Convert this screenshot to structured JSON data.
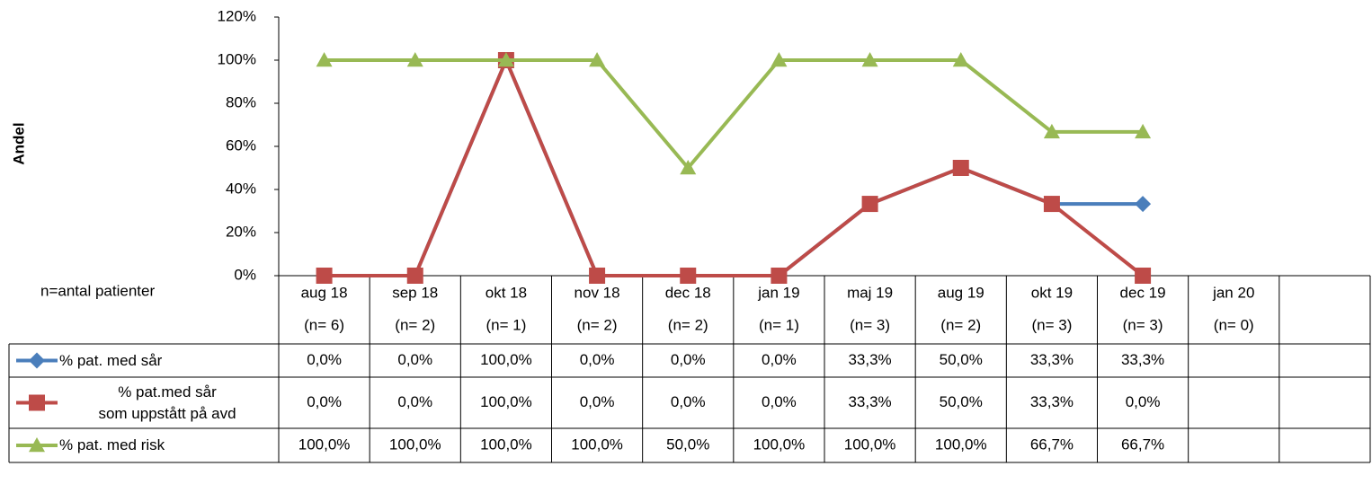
{
  "chart_data": {
    "type": "line",
    "y_axis_label": "Andel",
    "n_note": "n=antal patienter",
    "categories": [
      "aug 18",
      "sep 18",
      "okt 18",
      "nov 18",
      "dec 18",
      "jan 19",
      "maj 19",
      "aug 19",
      "okt 19",
      "dec 19",
      "jan 20",
      null
    ],
    "n_labels": [
      "(n= 6)",
      "(n= 2)",
      "(n= 1)",
      "(n= 2)",
      "(n= 2)",
      "(n= 1)",
      "(n= 3)",
      "(n= 2)",
      "(n= 3)",
      "(n= 3)",
      "(n= 0)",
      null
    ],
    "ylim": [
      0,
      120
    ],
    "yticks": [
      {
        "value": 0,
        "label": "0%"
      },
      {
        "value": 20,
        "label": "20%"
      },
      {
        "value": 40,
        "label": "40%"
      },
      {
        "value": 60,
        "label": "60%"
      },
      {
        "value": 80,
        "label": "80%"
      },
      {
        "value": 100,
        "label": "100%"
      },
      {
        "value": 120,
        "label": "120%"
      }
    ],
    "grid": false,
    "series": [
      {
        "name": "% pat. med sår",
        "color": "#4a7ebb",
        "marker": "diamond",
        "values": [
          0,
          0,
          100,
          0,
          0,
          0,
          33.3,
          50,
          33.3,
          33.3,
          null,
          null
        ],
        "value_labels": [
          "0,0%",
          "0,0%",
          "100,0%",
          "0,0%",
          "0,0%",
          "0,0%",
          "33,3%",
          "50,0%",
          "33,3%",
          "33,3%",
          null,
          null
        ]
      },
      {
        "name": "% pat.med sår\nsom uppstått på avd",
        "color": "#be4b48",
        "marker": "square",
        "values": [
          0,
          0,
          100,
          0,
          0,
          0,
          33.3,
          50,
          33.3,
          0,
          null,
          null
        ],
        "value_labels": [
          "0,0%",
          "0,0%",
          "100,0%",
          "0,0%",
          "0,0%",
          "0,0%",
          "33,3%",
          "50,0%",
          "33,3%",
          "0,0%",
          null,
          null
        ]
      },
      {
        "name": "% pat. med risk",
        "color": "#98b954",
        "marker": "triangle",
        "values": [
          100,
          100,
          100,
          100,
          50,
          100,
          100,
          100,
          66.7,
          66.7,
          null,
          null
        ],
        "value_labels": [
          "100,0%",
          "100,0%",
          "100,0%",
          "100,0%",
          "50,0%",
          "100,0%",
          "100,0%",
          "100,0%",
          "66,7%",
          "66,7%",
          null,
          null
        ]
      }
    ]
  }
}
